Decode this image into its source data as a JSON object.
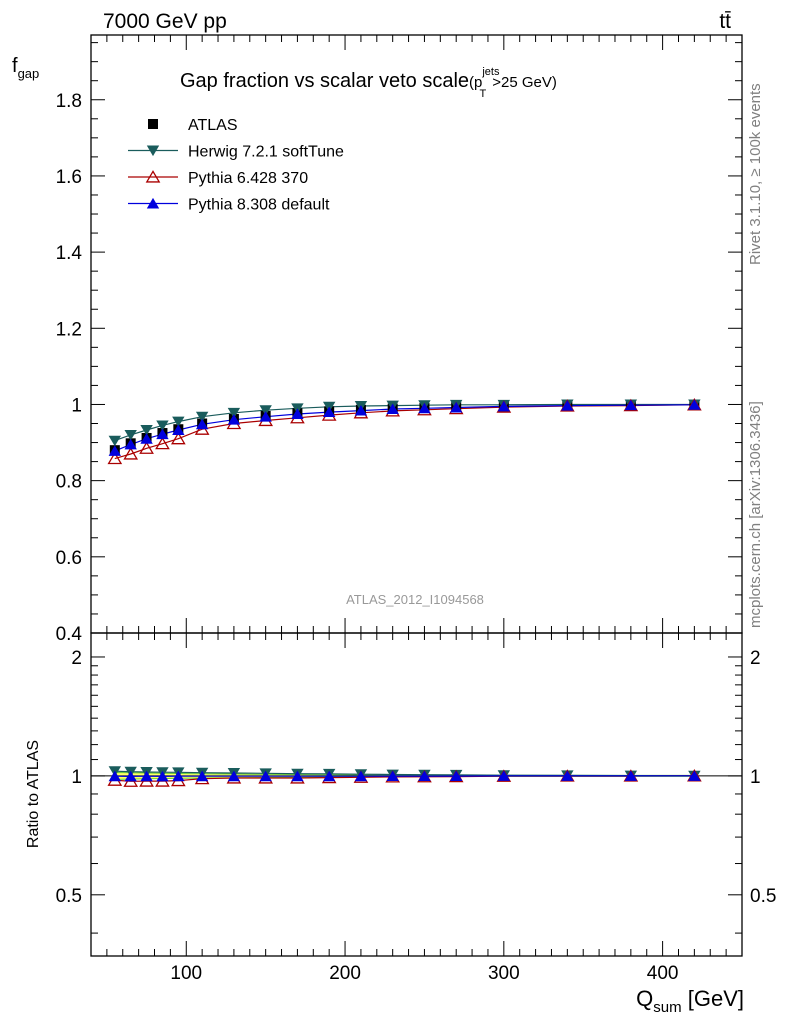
{
  "header": {
    "energy_label": "7000 GeV pp",
    "process_label": "tt̄"
  },
  "side_labels": {
    "rivet": "Rivet 3.1.10, ≥ 100k events",
    "source": "mcplots.cern.ch [arXiv:1306.3436]"
  },
  "chart_data": {
    "type": "line",
    "title": "Gap fraction vs scalar veto scale",
    "title_suffix": {
      "prefix": "(p",
      "sup": "jets",
      "sub": "T",
      "rest": ">25 GeV)"
    },
    "analysis_label": "ATLAS_2012_I1094568",
    "xlabel": {
      "main": "Q",
      "sub": "sum",
      "unit": " [GeV]"
    },
    "ylabel": {
      "main": "f",
      "sub": "gap"
    },
    "ratio_ylabel": "Ratio to ATLAS",
    "xlim": [
      40,
      450
    ],
    "ylim": [
      0.4,
      1.97
    ],
    "ratio_ylim": [
      0.35,
      2.3
    ],
    "x_ticks": [
      100,
      200,
      300,
      400
    ],
    "x_tick_labels": [
      "100",
      "200",
      "300",
      "400"
    ],
    "y_ticks": [
      0.4,
      0.6,
      0.8,
      1.0,
      1.2,
      1.4,
      1.6,
      1.8
    ],
    "y_tick_labels": [
      "0.4",
      "0.6",
      "0.8",
      "1",
      "1.2",
      "1.4",
      "1.6",
      "1.8"
    ],
    "ratio_ticks": [
      0.5,
      1,
      2
    ],
    "ratio_tick_labels": [
      "0.5",
      "1",
      "2"
    ],
    "x": [
      55,
      65,
      75,
      85,
      95,
      110,
      130,
      150,
      170,
      190,
      210,
      230,
      250,
      270,
      300,
      340,
      380,
      420
    ],
    "series": [
      {
        "name": "ATLAS",
        "color": "#000000",
        "marker": "square",
        "values": [
          0.88,
          0.898,
          0.912,
          0.925,
          0.935,
          0.95,
          0.962,
          0.97,
          0.977,
          0.982,
          0.986,
          0.989,
          0.991,
          0.993,
          0.995,
          0.997,
          0.998,
          0.999
        ]
      },
      {
        "name": "Herwig 7.2.1 softTune",
        "color": "#1a5c5c",
        "marker": "triangle-down",
        "values": [
          0.905,
          0.92,
          0.933,
          0.945,
          0.955,
          0.968,
          0.978,
          0.985,
          0.99,
          0.994,
          0.996,
          0.997,
          0.998,
          0.999,
          0.999,
          1.0,
          1.0,
          1.0
        ],
        "ratio": [
          1.028,
          1.025,
          1.023,
          1.022,
          1.021,
          1.019,
          1.017,
          1.015,
          1.013,
          1.012,
          1.01,
          1.008,
          1.007,
          1.006,
          1.004,
          1.003,
          1.002,
          1.001
        ]
      },
      {
        "name": "Pythia 6.428 370",
        "color": "#aa0000",
        "marker": "triangle-up-open",
        "values": [
          0.858,
          0.87,
          0.885,
          0.897,
          0.91,
          0.935,
          0.95,
          0.958,
          0.965,
          0.972,
          0.978,
          0.983,
          0.986,
          0.989,
          0.993,
          0.996,
          0.997,
          0.999
        ],
        "ratio": [
          0.975,
          0.969,
          0.97,
          0.97,
          0.973,
          0.984,
          0.988,
          0.988,
          0.988,
          0.99,
          0.992,
          0.994,
          0.995,
          0.996,
          0.998,
          0.999,
          0.999,
          1.0
        ]
      },
      {
        "name": "Pythia 8.308 default",
        "color": "#0000dd",
        "marker": "triangle-up",
        "values": [
          0.878,
          0.895,
          0.91,
          0.922,
          0.933,
          0.948,
          0.96,
          0.968,
          0.975,
          0.98,
          0.984,
          0.988,
          0.99,
          0.992,
          0.995,
          0.997,
          0.998,
          0.999
        ],
        "ratio": [
          0.998,
          0.997,
          0.998,
          0.997,
          0.998,
          0.998,
          0.998,
          0.998,
          0.998,
          0.998,
          0.998,
          0.999,
          0.999,
          0.999,
          1.0,
          1.0,
          1.0,
          1.0
        ]
      }
    ]
  }
}
